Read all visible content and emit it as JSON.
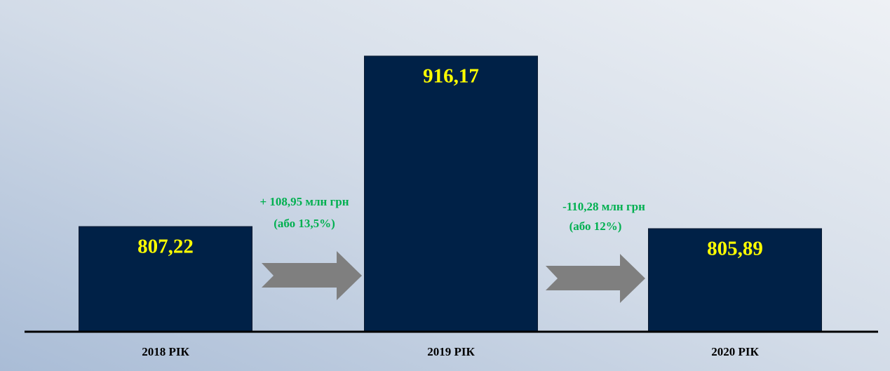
{
  "chart_data": {
    "type": "bar",
    "categories": [
      "2018 РІК",
      "2019 РІК",
      "2020 РІК"
    ],
    "values": [
      807.22,
      916.17,
      805.89
    ],
    "value_labels": [
      "807,22",
      "916,17",
      "805,89"
    ],
    "color": "#002147",
    "label_color": "#ffff00",
    "ylim": [
      740,
      920
    ],
    "annotations": [
      {
        "lines": [
          "+ 108,95 млн грн",
          "(або 13,5%)"
        ]
      },
      {
        "lines": [
          "-110,28 млн грн",
          "(або 12%)"
        ]
      }
    ]
  }
}
